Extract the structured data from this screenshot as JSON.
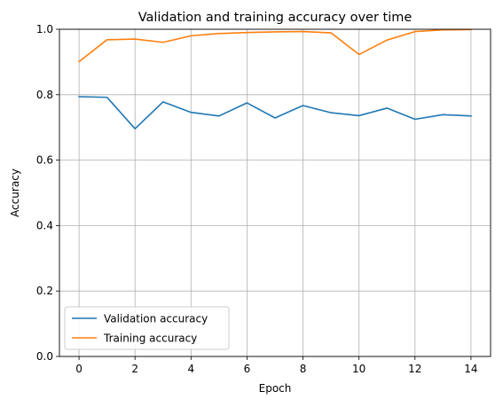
{
  "chart_data": {
    "type": "line",
    "title": "Validation and training accuracy over time",
    "xlabel": "Epoch",
    "ylabel": "Accuracy",
    "xlim": [
      -0.7,
      14.7
    ],
    "ylim": [
      0.0,
      1.0
    ],
    "x_ticks": [
      0,
      2,
      4,
      6,
      8,
      10,
      12,
      14
    ],
    "y_ticks": [
      0.0,
      0.2,
      0.4,
      0.6,
      0.8,
      1.0
    ],
    "x_tick_labels": [
      "0",
      "2",
      "4",
      "6",
      "8",
      "10",
      "12",
      "14"
    ],
    "y_tick_labels": [
      "0.0",
      "0.2",
      "0.4",
      "0.6",
      "0.8",
      "1.0"
    ],
    "grid": true,
    "legend_position": "lower-left",
    "x": [
      0,
      1,
      2,
      3,
      4,
      5,
      6,
      7,
      8,
      9,
      10,
      11,
      12,
      13,
      14
    ],
    "series": [
      {
        "name": "Validation accuracy",
        "color": "#1f77b4",
        "values": [
          0.794,
          0.792,
          0.696,
          0.778,
          0.746,
          0.735,
          0.775,
          0.729,
          0.767,
          0.745,
          0.736,
          0.759,
          0.725,
          0.739,
          0.735
        ]
      },
      {
        "name": "Training accuracy",
        "color": "#ff7f0e",
        "values": [
          0.901,
          0.968,
          0.97,
          0.96,
          0.98,
          0.987,
          0.99,
          0.992,
          0.993,
          0.989,
          0.923,
          0.967,
          0.993,
          0.998,
          0.999
        ]
      }
    ]
  }
}
